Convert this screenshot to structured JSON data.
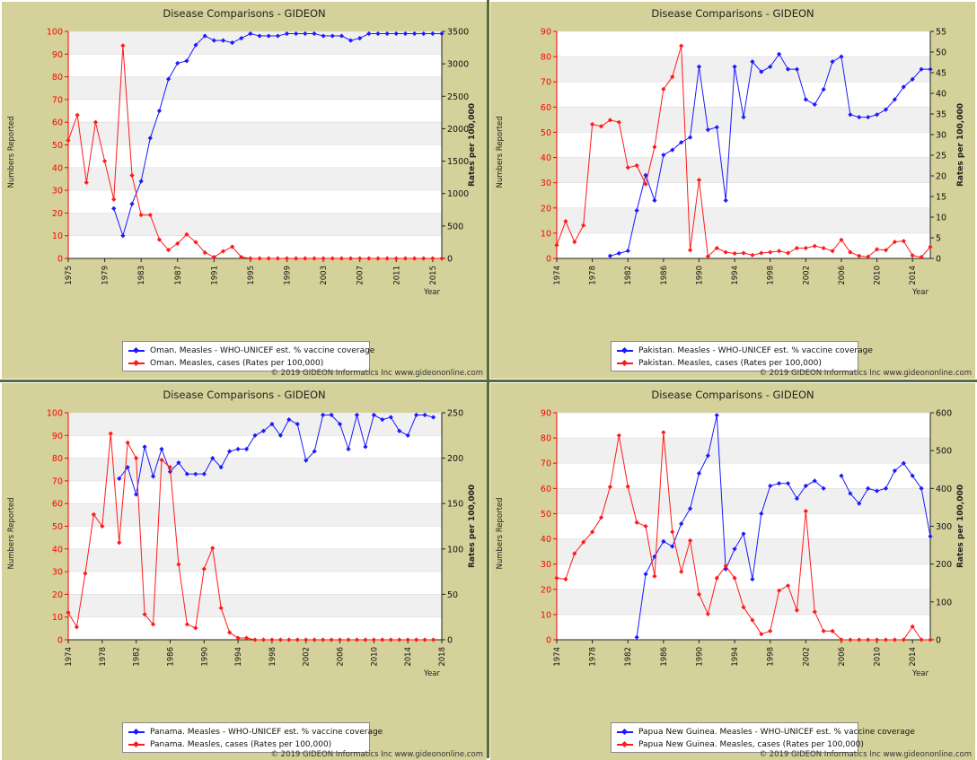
{
  "copyright": "© 2019 GIDEON Informatics Inc www.gideononline.com",
  "left_axis_label": "Numbers Reported",
  "right_axis_label": "Rates per 100,000",
  "x_axis_label": "Year",
  "colors": {
    "coverage": "#1a1aff",
    "cases": "#ff1a1a",
    "left_axis": "#ff0000"
  },
  "chart_data": [
    {
      "type": "line",
      "title": "Disease Comparisons - GIDEON",
      "xlabel": "Year",
      "ylabel_left": "Numbers Reported",
      "ylabel_right": "Rates per 100,000",
      "x_range": [
        1975,
        2016
      ],
      "x_ticks": [
        1975,
        1979,
        1983,
        1987,
        1991,
        1995,
        1999,
        2003,
        2007,
        2011,
        2015
      ],
      "ylim_left": [
        0,
        100
      ],
      "yticks_left": [
        0,
        10,
        20,
        30,
        40,
        50,
        60,
        70,
        80,
        90,
        100
      ],
      "ylim_right": [
        0,
        3500
      ],
      "yticks_right": [
        0,
        500,
        1000,
        1500,
        2000,
        2500,
        3000,
        3500
      ],
      "legend_position": "bottom",
      "grid": true,
      "series": [
        {
          "name": "Oman. Measles - WHO-UNICEF est. % vaccine coverage",
          "axis": "left",
          "x": [
            1980,
            1981,
            1982,
            1983,
            1984,
            1985,
            1986,
            1987,
            1988,
            1989,
            1990,
            1991,
            1992,
            1993,
            1994,
            1995,
            1996,
            1997,
            1998,
            1999,
            2000,
            2001,
            2002,
            2003,
            2004,
            2005,
            2006,
            2007,
            2008,
            2009,
            2010,
            2011,
            2012,
            2013,
            2014,
            2015,
            2016
          ],
          "values": [
            22,
            10,
            24,
            34,
            53,
            65,
            79,
            86,
            87,
            94,
            98,
            96,
            96,
            95,
            97,
            99,
            98,
            98,
            98,
            99,
            99,
            99,
            99,
            98,
            98,
            98,
            96,
            97,
            99,
            99,
            99,
            99,
            99,
            99,
            99,
            99,
            99
          ]
        },
        {
          "name": "Oman. Measles, cases (Rates per 100,000)",
          "axis": "right",
          "x": [
            1975,
            1976,
            1977,
            1978,
            1979,
            1980,
            1981,
            1982,
            1983,
            1984,
            1985,
            1986,
            1987,
            1988,
            1989,
            1990,
            1991,
            1992,
            1993,
            1994,
            1995,
            1996,
            1997,
            1998,
            1999,
            2000,
            2001,
            2002,
            2003,
            2004,
            2005,
            2006,
            2007,
            2008,
            2009,
            2010,
            2011,
            2012,
            2013,
            2014,
            2015,
            2016
          ],
          "values": [
            1820,
            2210,
            1170,
            2100,
            1500,
            910,
            3280,
            1280,
            670,
            670,
            290,
            130,
            230,
            370,
            250,
            90,
            20,
            110,
            180,
            20,
            0,
            0,
            0,
            0,
            0,
            0,
            0,
            0,
            0,
            0,
            0,
            0,
            0,
            0,
            0,
            0,
            0,
            0,
            0,
            0,
            0,
            0
          ]
        }
      ]
    },
    {
      "type": "line",
      "title": "Disease Comparisons - GIDEON",
      "xlabel": "Year",
      "ylabel_left": "Numbers Reported",
      "ylabel_right": "Rates per 100,000",
      "x_range": [
        1974,
        2016
      ],
      "x_ticks": [
        1974,
        1978,
        1982,
        1986,
        1990,
        1994,
        1998,
        2002,
        2006,
        2010,
        2014
      ],
      "ylim_left": [
        0,
        90
      ],
      "yticks_left": [
        0,
        10,
        20,
        30,
        40,
        50,
        60,
        70,
        80,
        90
      ],
      "ylim_right": [
        0,
        55
      ],
      "yticks_right": [
        0,
        5,
        10,
        15,
        20,
        25,
        30,
        35,
        40,
        45,
        50,
        55
      ],
      "legend_position": "bottom",
      "grid": true,
      "series": [
        {
          "name": "Pakistan. Measles - WHO-UNICEF est. % vaccine coverage",
          "axis": "left",
          "x": [
            1980,
            1981,
            1982,
            1983,
            1984,
            1985,
            1986,
            1987,
            1988,
            1989,
            1990,
            1991,
            1992,
            1993,
            1994,
            1995,
            1996,
            1997,
            1998,
            1999,
            2000,
            2001,
            2002,
            2003,
            2004,
            2005,
            2006,
            2007,
            2008,
            2009,
            2010,
            2011,
            2012,
            2013,
            2014,
            2015,
            2016
          ],
          "values": [
            1,
            2,
            3,
            19,
            33,
            23,
            41,
            43,
            46,
            48,
            76,
            51,
            52,
            23,
            76,
            56,
            78,
            74,
            76,
            81,
            75,
            75,
            63,
            61,
            67,
            78,
            80,
            57,
            56,
            56,
            57,
            59,
            63,
            68,
            71,
            75,
            75
          ]
        },
        {
          "name": "Pakistan. Measles, cases (Rates per 100,000)",
          "axis": "right",
          "x": [
            1974,
            1975,
            1976,
            1977,
            1978,
            1979,
            1980,
            1981,
            1982,
            1983,
            1984,
            1985,
            1986,
            1987,
            1988,
            1989,
            1990,
            1991,
            1992,
            1993,
            1994,
            1995,
            1996,
            1997,
            1998,
            1999,
            2000,
            2001,
            2002,
            2003,
            2004,
            2005,
            2006,
            2007,
            2008,
            2009,
            2010,
            2011,
            2012,
            2013,
            2014,
            2015,
            2016
          ],
          "values": [
            3.2,
            9,
            4,
            8,
            32.5,
            32,
            33.5,
            33,
            22,
            22.5,
            18,
            27,
            41,
            44,
            51.5,
            2,
            19,
            0.5,
            2.5,
            1.5,
            1.2,
            1.3,
            0.8,
            1.3,
            1.5,
            1.8,
            1.3,
            2.5,
            2.5,
            3,
            2.5,
            1.8,
            4.5,
            1.5,
            0.6,
            0.4,
            2.2,
            2,
            4,
            4.2,
            0.7,
            0.3,
            2.8
          ]
        }
      ]
    },
    {
      "type": "line",
      "title": "Disease Comparisons - GIDEON",
      "xlabel": "Year",
      "ylabel_left": "Numbers Reported",
      "ylabel_right": "Rates per 100,000",
      "x_range": [
        1974,
        2018
      ],
      "x_ticks": [
        1974,
        1978,
        1982,
        1986,
        1990,
        1994,
        1998,
        2002,
        2006,
        2010,
        2014,
        2018
      ],
      "ylim_left": [
        0,
        100
      ],
      "yticks_left": [
        0,
        10,
        20,
        30,
        40,
        50,
        60,
        70,
        80,
        90,
        100
      ],
      "ylim_right": [
        0,
        250
      ],
      "yticks_right": [
        0,
        50,
        100,
        150,
        200,
        250
      ],
      "legend_position": "bottom",
      "grid": true,
      "series": [
        {
          "name": "Panama. Measles - WHO-UNICEF est. % vaccine coverage",
          "axis": "left",
          "x": [
            1980,
            1981,
            1982,
            1983,
            1984,
            1985,
            1986,
            1987,
            1988,
            1989,
            1990,
            1991,
            1992,
            1993,
            1994,
            1995,
            1996,
            1997,
            1998,
            1999,
            2000,
            2001,
            2002,
            2003,
            2004,
            2005,
            2006,
            2007,
            2008,
            2009,
            2010,
            2011,
            2012,
            2013,
            2014,
            2015,
            2016,
            2017
          ],
          "values": [
            71,
            76,
            64,
            85,
            72,
            84,
            74,
            78,
            73,
            73,
            73,
            80,
            76,
            83,
            84,
            84,
            90,
            92,
            95,
            90,
            97,
            95,
            79,
            83,
            99,
            99,
            95,
            84,
            99,
            85,
            99,
            97,
            98,
            92,
            90,
            99,
            99,
            98
          ]
        },
        {
          "name": "Panama. Measles, cases (Rates per 100,000)",
          "axis": "right",
          "x": [
            1974,
            1975,
            1976,
            1977,
            1978,
            1979,
            1980,
            1981,
            1982,
            1983,
            1984,
            1985,
            1986,
            1987,
            1988,
            1989,
            1990,
            1991,
            1992,
            1993,
            1994,
            1995,
            1996,
            1997,
            1998,
            1999,
            2000,
            2001,
            2002,
            2003,
            2004,
            2005,
            2006,
            2007,
            2008,
            2009,
            2010,
            2011,
            2012,
            2013,
            2014,
            2015,
            2016,
            2017
          ],
          "values": [
            30,
            14,
            73,
            138,
            125,
            227,
            107,
            217,
            200,
            28,
            17,
            198,
            190,
            83,
            17,
            13,
            78,
            101,
            35,
            8,
            2,
            2,
            0,
            0,
            0,
            0,
            0,
            0,
            0,
            0,
            0,
            0,
            0,
            0,
            0,
            0,
            0,
            0,
            0,
            0,
            0,
            0,
            0,
            0
          ]
        }
      ]
    },
    {
      "type": "line",
      "title": "Disease Comparisons - GIDEON",
      "xlabel": "Year",
      "ylabel_left": "Numbers Reported",
      "ylabel_right": "Rates per 100,000",
      "x_range": [
        1974,
        2016
      ],
      "x_ticks": [
        1974,
        1978,
        1982,
        1986,
        1990,
        1994,
        1998,
        2002,
        2006,
        2010,
        2014
      ],
      "ylim_left": [
        0,
        90
      ],
      "yticks_left": [
        0,
        10,
        20,
        30,
        40,
        50,
        60,
        70,
        80,
        90
      ],
      "ylim_right": [
        0,
        600
      ],
      "yticks_right": [
        0,
        100,
        200,
        300,
        400,
        500,
        600
      ],
      "legend_position": "bottom",
      "grid": true,
      "series": [
        {
          "name": "Papua New Guinea. Measles - WHO-UNICEF est. % vaccine coverage",
          "axis": "left",
          "x": [
            1983,
            1984,
            1985,
            1986,
            1987,
            1988,
            1989,
            1990,
            1991,
            1992,
            1993,
            1994,
            1995,
            1996,
            1997,
            1998,
            1999,
            2000,
            2001,
            2002,
            2003,
            2004,
            null,
            2006,
            2007,
            2008,
            2009,
            2010,
            2011,
            2012,
            2013,
            2014,
            2015,
            2016
          ],
          "values": [
            1,
            26,
            33,
            39,
            37,
            46,
            52,
            66,
            73,
            89,
            28,
            36,
            42,
            24,
            50,
            61,
            62,
            62,
            56,
            61,
            63,
            60,
            null,
            65,
            58,
            54,
            60,
            59,
            60,
            67,
            70,
            65,
            60,
            41
          ]
        },
        {
          "name": "Papua New Guinea. Measles, cases (Rates per 100,000)",
          "axis": "right",
          "x": [
            1974,
            1975,
            1976,
            1977,
            1978,
            1979,
            1980,
            1981,
            1982,
            1983,
            1984,
            1985,
            1986,
            1987,
            1988,
            1989,
            1990,
            1991,
            1992,
            1993,
            1994,
            1995,
            1996,
            1997,
            1998,
            1999,
            2000,
            2001,
            2002,
            2003,
            2004,
            2005,
            2006,
            2007,
            2008,
            2009,
            2010,
            2011,
            2012,
            2013,
            2014,
            2015,
            2016
          ],
          "values": [
            163,
            160,
            228,
            258,
            285,
            323,
            404,
            540,
            405,
            310,
            300,
            168,
            548,
            285,
            180,
            262,
            120,
            68,
            163,
            195,
            163,
            86,
            52,
            15,
            23,
            130,
            143,
            78,
            340,
            74,
            23,
            23,
            0,
            0,
            0,
            0,
            0,
            0,
            0,
            0,
            35,
            0,
            0
          ]
        }
      ]
    }
  ]
}
